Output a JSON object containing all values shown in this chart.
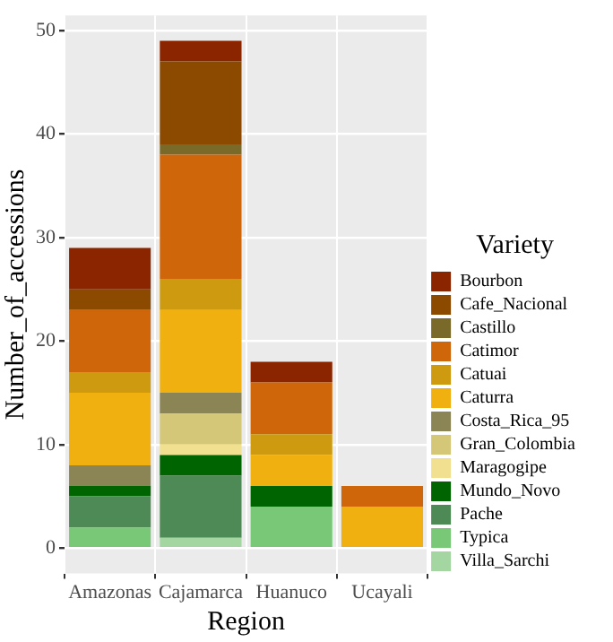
{
  "chart_data": {
    "type": "bar",
    "stacked": true,
    "xlabel": "Region",
    "ylabel": "Number_of_accessions",
    "legend_title": "Variety",
    "legend": "right",
    "grid": true,
    "categories": [
      "Amazonas",
      "Cajamarca",
      "Huanuco",
      "Ucayali"
    ],
    "ylim": [
      -2.45,
      51.45
    ],
    "yticks": [
      0,
      10,
      20,
      30,
      40,
      50
    ],
    "series": [
      {
        "name": "Villa_Sarchi",
        "color": "#a3d6a0",
        "values": [
          0,
          1,
          0,
          0
        ]
      },
      {
        "name": "Typica",
        "color": "#78c878",
        "values": [
          2,
          0,
          4,
          0
        ]
      },
      {
        "name": "Pache",
        "color": "#4e8a55",
        "values": [
          3,
          6,
          0,
          0
        ]
      },
      {
        "name": "Mundo_Novo",
        "color": "#006400",
        "values": [
          1,
          2,
          2,
          0
        ]
      },
      {
        "name": "Maragogipe",
        "color": "#f0e090",
        "values": [
          0,
          1,
          0,
          0
        ]
      },
      {
        "name": "Gran_Colombia",
        "color": "#d4c878",
        "values": [
          0,
          3,
          0,
          0
        ]
      },
      {
        "name": "Costa_Rica_95",
        "color": "#8b8455",
        "values": [
          2,
          2,
          0,
          0
        ]
      },
      {
        "name": "Caturra",
        "color": "#f0b010",
        "values": [
          7,
          8,
          3,
          4
        ]
      },
      {
        "name": "Catuai",
        "color": "#cd9a10",
        "values": [
          2,
          3,
          2,
          0
        ]
      },
      {
        "name": "Catimor",
        "color": "#d0660a",
        "values": [
          6,
          12,
          5,
          2
        ]
      },
      {
        "name": "Castillo",
        "color": "#7a6a2a",
        "values": [
          0,
          1,
          0,
          0
        ]
      },
      {
        "name": "Cafe_Nacional",
        "color": "#8b4a00",
        "values": [
          2,
          8,
          0,
          0
        ]
      },
      {
        "name": "Bourbon",
        "color": "#8b2500",
        "values": [
          4,
          2,
          2,
          0
        ]
      }
    ]
  }
}
